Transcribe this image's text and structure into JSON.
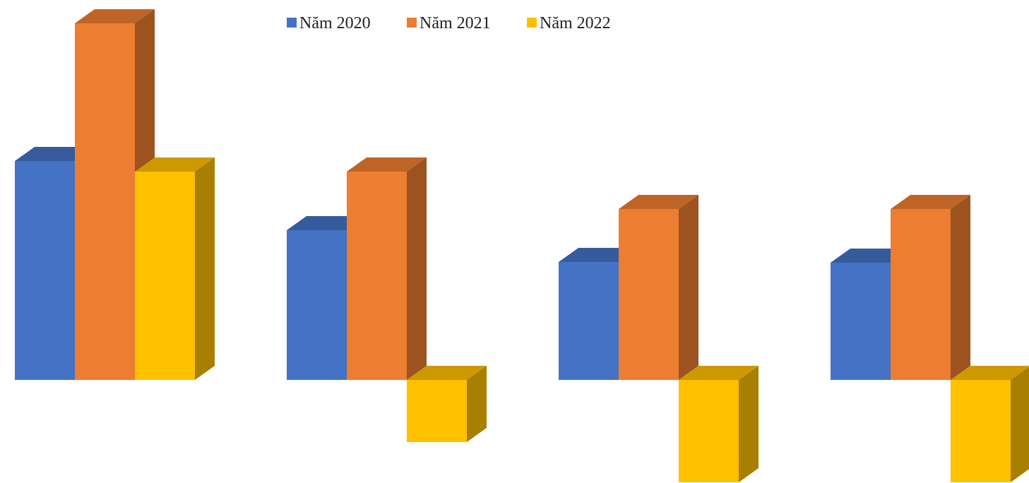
{
  "chart_data": {
    "type": "bar",
    "style": "3d-clustered-column",
    "title": "",
    "xlabel": "",
    "ylabel": "",
    "grid": false,
    "axes_visible": false,
    "legend_position": "top-center",
    "categories": [
      "",
      "",
      "",
      ""
    ],
    "series": [
      {
        "name": "Năm 2020",
        "color": "#4472C4",
        "values": [
          310,
          212,
          167,
          166
        ]
      },
      {
        "name": "Năm 2021",
        "color": "#ED7D31",
        "values": [
          505,
          295,
          242,
          242
        ]
      },
      {
        "name": "Năm 2022",
        "color": "#FFC000",
        "values": [
          295,
          -88,
          -145,
          -145
        ]
      }
    ]
  }
}
